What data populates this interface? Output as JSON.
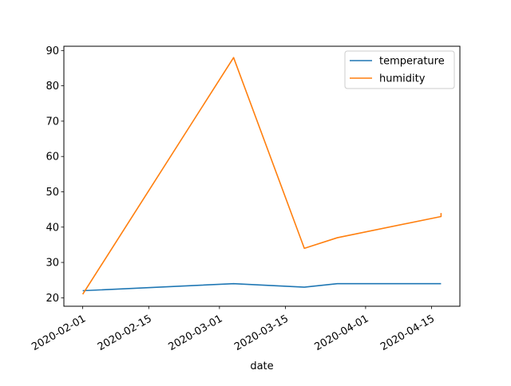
{
  "chart_data": {
    "type": "line",
    "title": "",
    "xlabel": "date",
    "ylabel": "",
    "grid": false,
    "legend_position": "top-right",
    "x_ticks": [
      "2020-02-01",
      "2020-02-15",
      "2020-03-01",
      "2020-03-15",
      "2020-04-01",
      "2020-04-15"
    ],
    "y_ticks": [
      20,
      30,
      40,
      50,
      60,
      70,
      80,
      90
    ],
    "xlim": [
      "2020-01-28",
      "2020-04-21"
    ],
    "ylim": [
      17.6,
      91.2
    ],
    "series": [
      {
        "name": "temperature",
        "color": "#1f77b4",
        "x": [
          "2020-02-01",
          "2020-03-04",
          "2020-03-19",
          "2020-03-26",
          "2020-04-17",
          "2020-04-17"
        ],
        "y": [
          22,
          24,
          23,
          24,
          24,
          24
        ]
      },
      {
        "name": "humidity",
        "color": "#ff7f0e",
        "x": [
          "2020-02-01",
          "2020-03-04",
          "2020-03-19",
          "2020-03-26",
          "2020-04-17",
          "2020-04-17"
        ],
        "y": [
          21,
          88,
          34,
          37,
          43,
          44
        ]
      }
    ]
  }
}
